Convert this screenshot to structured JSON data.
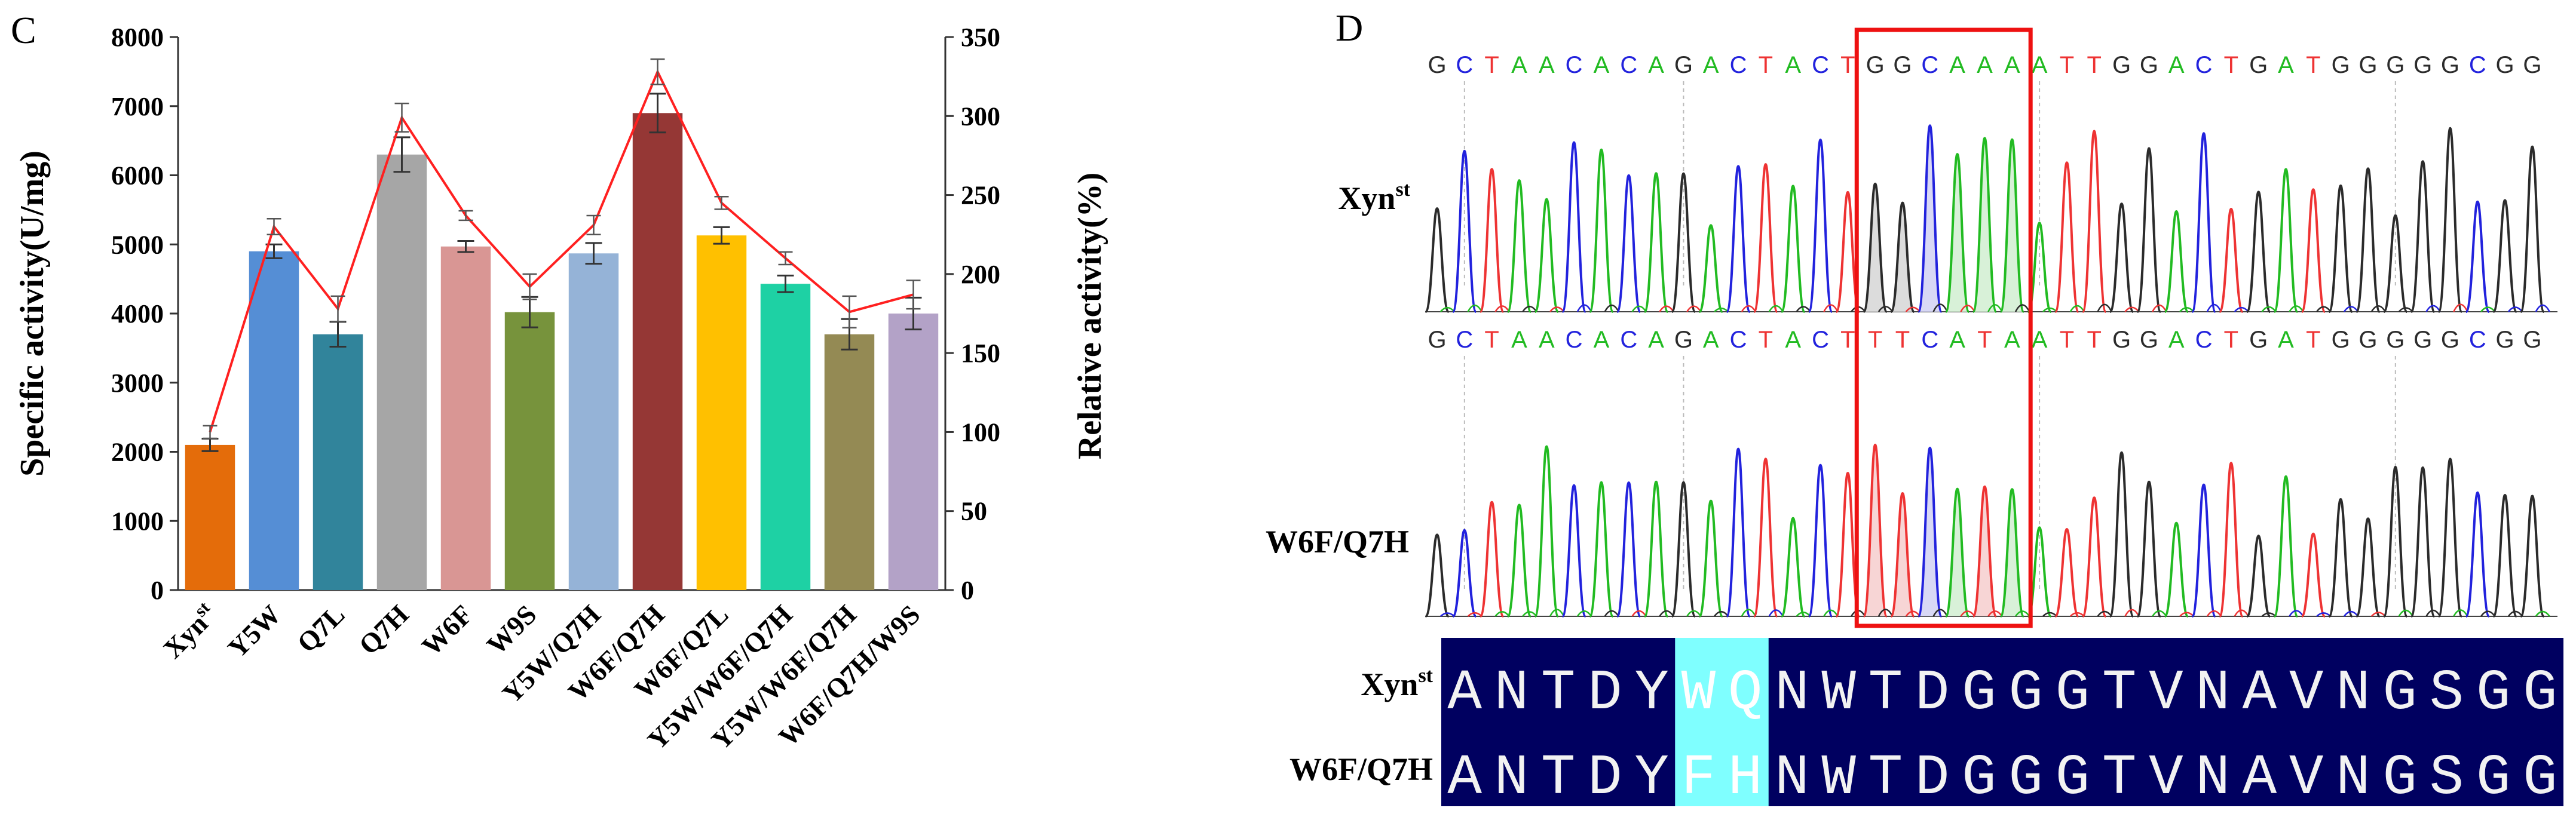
{
  "panel_c": {
    "label": "C",
    "chart_data": {
      "type": "bar",
      "categories": [
        "Xyn",
        "Y5W",
        "Q7L",
        "Q7H",
        "W6F",
        "W9S",
        "Y5W/Q7H",
        "W6F/Q7H",
        "W6F/Q7L",
        "Y5W/W6F/Q7H",
        "Y5W/W6F/Q7H",
        "W6F/Q7H/W9S"
      ],
      "category_superscripts": [
        "st",
        "",
        "",
        "",
        "",
        "",
        "",
        "",
        "",
        "",
        "",
        ""
      ],
      "series": [
        {
          "name": "Specific activity",
          "axis": "left",
          "values": [
            2100,
            4900,
            3700,
            6300,
            4970,
            4020,
            4870,
            6900,
            5130,
            4430,
            3700,
            4000
          ],
          "errors": [
            90,
            100,
            180,
            250,
            80,
            220,
            150,
            280,
            120,
            120,
            220,
            230
          ]
        },
        {
          "name": "Relative activity",
          "axis": "right",
          "type": "line",
          "values": [
            100,
            230,
            178,
            299,
            237,
            192,
            231,
            328,
            245,
            210,
            176,
            187
          ],
          "errors": [
            4,
            5,
            8,
            9,
            3,
            8,
            6,
            8,
            4,
            4,
            10,
            9
          ]
        }
      ],
      "bar_colors": [
        "#E46C0A",
        "#558ED5",
        "#31849B",
        "#A6A6A6",
        "#D99694",
        "#77933C",
        "#95B3D7",
        "#953735",
        "#FFC000",
        "#1ED1A4",
        "#948A54",
        "#B3A2C7"
      ],
      "line_color": "#FF2020",
      "ylabel": "Specific activity(U/mg)",
      "ylim": [
        0,
        8000
      ],
      "yticks": [
        0,
        1000,
        2000,
        3000,
        4000,
        5000,
        6000,
        7000,
        8000
      ],
      "y2label": "Relative activity(%)",
      "y2lim": [
        0,
        350
      ],
      "y2ticks": [
        0,
        50,
        100,
        150,
        200,
        250,
        300,
        350
      ]
    }
  },
  "panel_d": {
    "label": "D",
    "track1": {
      "name": "Xyn",
      "superscript": "st",
      "bases": "GCTAACACAGACTACTGGCAAAATTGGACTGATGGGGGCGG"
    },
    "track2": {
      "name": "W6F/Q7H",
      "superscript": "",
      "bases": "GCTAACACAGACTACTTTCATAATTGGACTGATGGGGGCGG"
    },
    "alignment": {
      "rows": [
        {
          "name": "Xyn",
          "superscript": "st",
          "sequence": "ANTDYWQNWTDGGGTVNAVNGSGG"
        },
        {
          "name": "W6F/Q7H",
          "superscript": "",
          "sequence": "ANTDYFHNWTDGGGTVNAVNGSGG"
        }
      ],
      "highlight_positions": [
        5,
        6
      ],
      "background": "#000060",
      "highlight_color": "#7FFFFF"
    },
    "base_colors": {
      "A": "#22BB22",
      "C": "#2222DD",
      "G": "#333333",
      "T": "#EE3333"
    }
  }
}
